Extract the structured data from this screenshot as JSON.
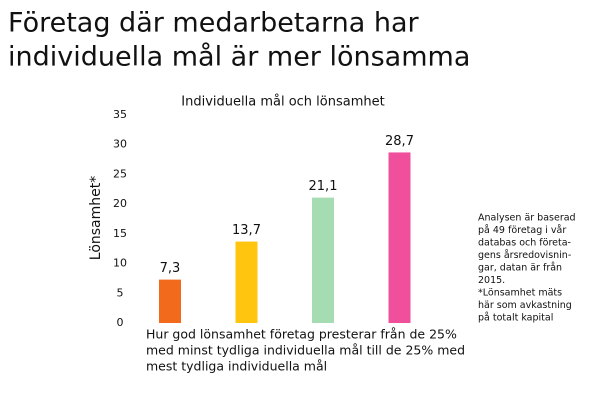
{
  "chart_data": {
    "type": "bar",
    "title": [
      "Företag där medarbetarna har",
      "individuella mål är mer lönsamma"
    ],
    "subtitle": "Individuella mål och lönsamhet",
    "ylabel": "Lönsamhet*",
    "xlabel": [
      "Hur god lönsamhet företag presterar från de 25%",
      "med minst tydliga individuella mål till de 25% med",
      "mest tydliga individuella mål"
    ],
    "note": [
      "Analysen är baserad",
      "på 49 företag i vår",
      "databas och företa-",
      "gens årsredovisnin-",
      "gar, datan är från",
      "2015.",
      "*Lönsamhet mäts",
      "här som avkastning",
      "på totalt kapital"
    ],
    "categories": [
      null,
      null,
      null,
      null
    ],
    "values": [
      7.3,
      13.7,
      21.1,
      28.7
    ],
    "value_labels": [
      "7,3",
      "13,7",
      "21,1",
      "28,7"
    ],
    "colors": [
      "#f26b1d",
      "#ffc50f",
      "#a6dcb2",
      "#f04f9b"
    ],
    "ylim": [
      0,
      35
    ],
    "yticks": [
      0,
      5,
      10,
      15,
      20,
      25,
      30,
      35
    ],
    "grid": false
  }
}
